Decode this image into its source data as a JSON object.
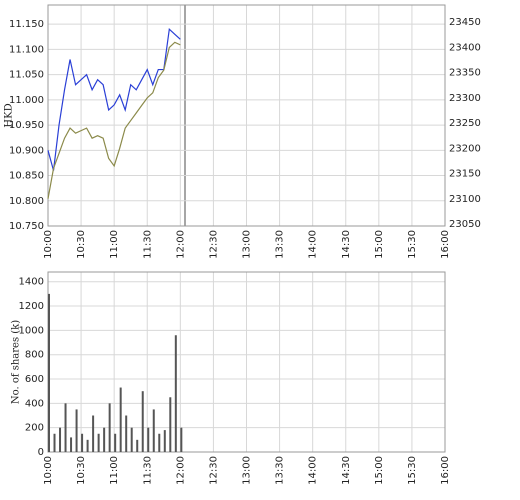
{
  "chart_data": [
    {
      "type": "line",
      "ylabel": "HKD",
      "x": [
        "10:00",
        "10:05",
        "10:10",
        "10:15",
        "10:20",
        "10:25",
        "10:30",
        "10:35",
        "10:40",
        "10:45",
        "10:50",
        "10:55",
        "11:00",
        "11:05",
        "11:10",
        "11:15",
        "11:20",
        "11:25",
        "11:30",
        "11:35",
        "11:40",
        "11:45",
        "11:50",
        "11:55",
        "12:00"
      ],
      "series": [
        {
          "color": "#2a3fd6",
          "values": [
            10.9,
            10.86,
            10.95,
            11.02,
            11.08,
            11.03,
            11.04,
            11.05,
            11.02,
            11.04,
            11.03,
            10.98,
            10.99,
            11.01,
            10.98,
            11.03,
            11.02,
            11.04,
            11.06,
            11.03,
            11.06,
            11.06,
            11.14,
            11.13,
            11.12
          ]
        },
        {
          "color": "#8b8a4a",
          "axis": "y2",
          "values": [
            23100,
            23160,
            23190,
            23220,
            23240,
            23230,
            23235,
            23240,
            23220,
            23225,
            23220,
            23180,
            23165,
            23200,
            23240,
            23255,
            23270,
            23285,
            23300,
            23310,
            23340,
            23355,
            23400,
            23410,
            23405
          ]
        }
      ],
      "xlim": [
        "10:00",
        "16:00"
      ],
      "xticks": [
        "10:00",
        "10:30",
        "11:00",
        "11:30",
        "12:00",
        "12:30",
        "13:00",
        "13:30",
        "14:00",
        "14:30",
        "15:00",
        "15:30",
        "16:00"
      ],
      "ylim": [
        10.75,
        11.188
      ],
      "yticks": [
        {
          "value": 10.75,
          "label": "10.750"
        },
        {
          "value": 10.8,
          "label": "10.800"
        },
        {
          "value": 10.85,
          "label": "10.850"
        },
        {
          "value": 10.9,
          "label": "10.900"
        },
        {
          "value": 10.95,
          "label": "10.950"
        },
        {
          "value": 11,
          "label": "11.000"
        },
        {
          "value": 11.05,
          "label": "11.050"
        },
        {
          "value": 11.1,
          "label": "11.100"
        },
        {
          "value": 11.15,
          "label": "11.150"
        }
      ],
      "y2lim": [
        23046,
        23484
      ],
      "y2ticks": [
        23050,
        23100,
        23150,
        23200,
        23250,
        23300,
        23350,
        23400,
        23450
      ],
      "grid": true
    },
    {
      "type": "bar",
      "ylabel": "No. of shares (k)",
      "color": "#555555",
      "x": [
        "10:00",
        "10:05",
        "10:10",
        "10:15",
        "10:20",
        "10:25",
        "10:30",
        "10:35",
        "10:40",
        "10:45",
        "10:50",
        "10:55",
        "11:00",
        "11:05",
        "11:10",
        "11:15",
        "11:20",
        "11:25",
        "11:30",
        "11:35",
        "11:40",
        "11:45",
        "11:50",
        "11:55",
        "12:00"
      ],
      "values": [
        1300,
        150,
        200,
        400,
        120,
        350,
        150,
        100,
        300,
        150,
        200,
        400,
        150,
        530,
        300,
        200,
        100,
        500,
        200,
        350,
        150,
        180,
        450,
        960,
        200
      ],
      "xlim": [
        "10:00",
        "16:00"
      ],
      "xticks": [
        "10:00",
        "10:30",
        "11:00",
        "11:30",
        "12:00",
        "12:30",
        "13:00",
        "13:30",
        "14:00",
        "14:30",
        "15:00",
        "15:30",
        "16:00"
      ],
      "ylim": [
        0,
        1480
      ],
      "yticks": [
        0,
        200,
        400,
        600,
        800,
        1000,
        1200,
        1400
      ],
      "grid": true
    }
  ]
}
